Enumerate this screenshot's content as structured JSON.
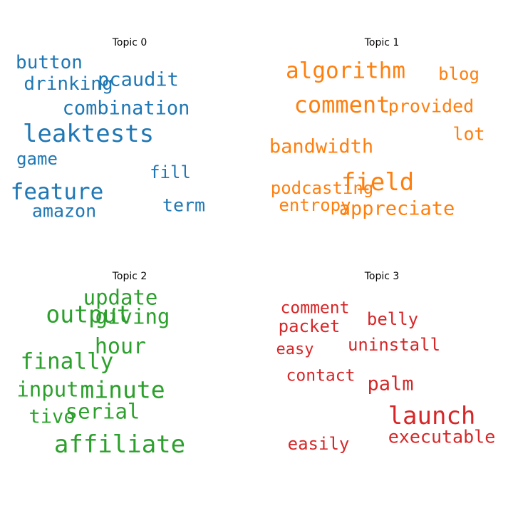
{
  "chart_data": [
    {
      "type": "wordcloud",
      "title": "Topic 0",
      "color": "#1f77b4",
      "words": [
        {
          "text": "leaktests",
          "weight": 1.0
        },
        {
          "text": "feature",
          "weight": 0.9
        },
        {
          "text": "combination",
          "weight": 0.78
        },
        {
          "text": "pcaudit",
          "weight": 0.78
        },
        {
          "text": "button",
          "weight": 0.76
        },
        {
          "text": "drinking",
          "weight": 0.76
        },
        {
          "text": "amazon",
          "weight": 0.74
        },
        {
          "text": "term",
          "weight": 0.74
        },
        {
          "text": "fill",
          "weight": 0.72
        },
        {
          "text": "game",
          "weight": 0.72
        }
      ]
    },
    {
      "type": "wordcloud",
      "title": "Topic 1",
      "color": "#ff7f0e",
      "words": [
        {
          "text": "field",
          "weight": 1.0
        },
        {
          "text": "comment",
          "weight": 0.95
        },
        {
          "text": "algorithm",
          "weight": 0.9
        },
        {
          "text": "appreciate",
          "weight": 0.78
        },
        {
          "text": "bandwidth",
          "weight": 0.78
        },
        {
          "text": "provided",
          "weight": 0.74
        },
        {
          "text": "lot",
          "weight": 0.74
        },
        {
          "text": "blog",
          "weight": 0.72
        },
        {
          "text": "podcasting",
          "weight": 0.72
        },
        {
          "text": "entropy",
          "weight": 0.7
        }
      ]
    },
    {
      "type": "wordcloud",
      "title": "Topic 2",
      "color": "#2ca02c",
      "words": [
        {
          "text": "affiliate",
          "weight": 1.0
        },
        {
          "text": "output",
          "weight": 0.98
        },
        {
          "text": "minute",
          "weight": 0.98
        },
        {
          "text": "finally",
          "weight": 0.92
        },
        {
          "text": "hour",
          "weight": 0.88
        },
        {
          "text": "giving",
          "weight": 0.84
        },
        {
          "text": "update",
          "weight": 0.84
        },
        {
          "text": "serial",
          "weight": 0.84
        },
        {
          "text": "input",
          "weight": 0.84
        },
        {
          "text": "tivo",
          "weight": 0.78
        }
      ]
    },
    {
      "type": "wordcloud",
      "title": "Topic 3",
      "color": "#d62728",
      "words": [
        {
          "text": "launch",
          "weight": 1.0
        },
        {
          "text": "palm",
          "weight": 0.78
        },
        {
          "text": "executable",
          "weight": 0.74
        },
        {
          "text": "uninstall",
          "weight": 0.72
        },
        {
          "text": "belly",
          "weight": 0.72
        },
        {
          "text": "packet",
          "weight": 0.72
        },
        {
          "text": "easily",
          "weight": 0.7
        },
        {
          "text": "comment",
          "weight": 0.68
        },
        {
          "text": "contact",
          "weight": 0.68
        },
        {
          "text": "easy",
          "weight": 0.66
        }
      ]
    }
  ]
}
